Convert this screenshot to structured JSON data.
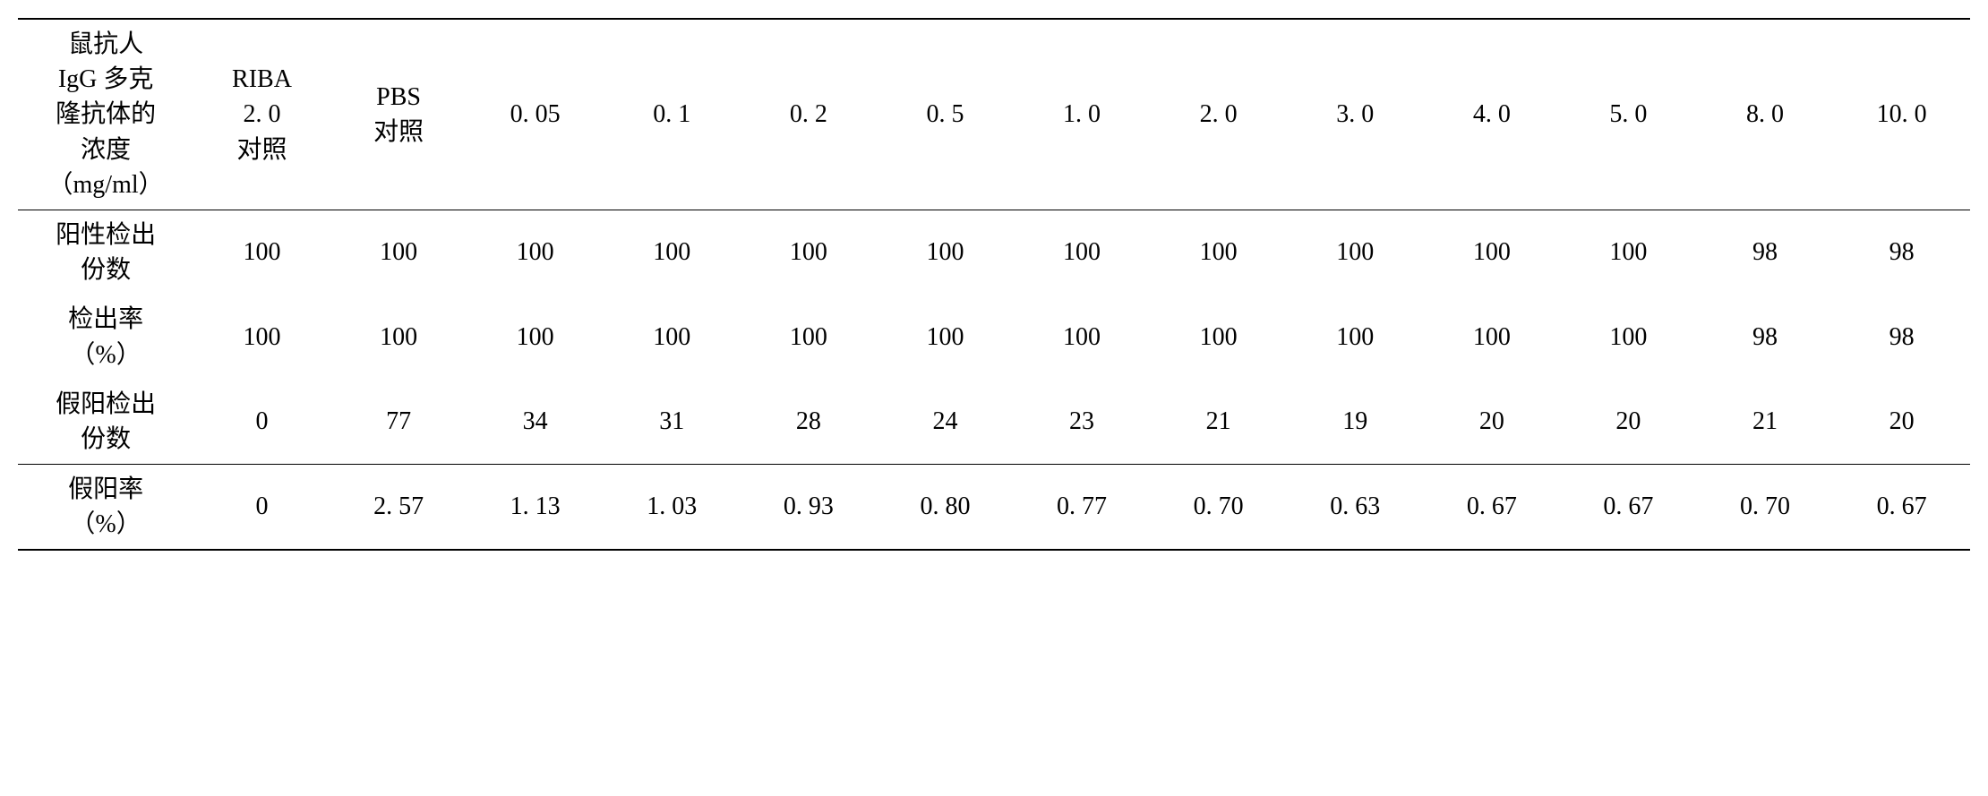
{
  "table": {
    "columns": [
      "鼠抗人\nIgG 多克\n隆抗体的\n浓度\n（mg/ml）",
      "RIBA\n2. 0\n对照",
      "PBS\n对照",
      "0. 05",
      "0. 1",
      "0. 2",
      "0. 5",
      "1. 0",
      "2. 0",
      "3. 0",
      "4. 0",
      "5. 0",
      "8. 0",
      "10. 0"
    ],
    "rows": [
      {
        "label": "阳性检出\n份数",
        "values": [
          "100",
          "100",
          "100",
          "100",
          "100",
          "100",
          "100",
          "100",
          "100",
          "100",
          "100",
          "98",
          "98"
        ]
      },
      {
        "label": "检出率\n（%）",
        "values": [
          "100",
          "100",
          "100",
          "100",
          "100",
          "100",
          "100",
          "100",
          "100",
          "100",
          "100",
          "98",
          "98"
        ]
      },
      {
        "label": "假阳检出\n份数",
        "values": [
          "0",
          "77",
          "34",
          "31",
          "28",
          "24",
          "23",
          "21",
          "19",
          "20",
          "20",
          "21",
          "20"
        ]
      },
      {
        "label": "假阳率\n（%）",
        "values": [
          "0",
          "2. 57",
          "1. 13",
          "1. 03",
          "0. 93",
          "0. 80",
          "0. 77",
          "0. 70",
          "0. 63",
          "0. 67",
          "0. 67",
          "0. 70",
          "0. 67"
        ]
      }
    ],
    "styling": {
      "font_size": 28,
      "text_color": "#000000",
      "background_color": "#ffffff",
      "border_color": "#000000",
      "top_border_width": 2,
      "inner_border_width": 1,
      "bottom_border_width": 2
    }
  }
}
